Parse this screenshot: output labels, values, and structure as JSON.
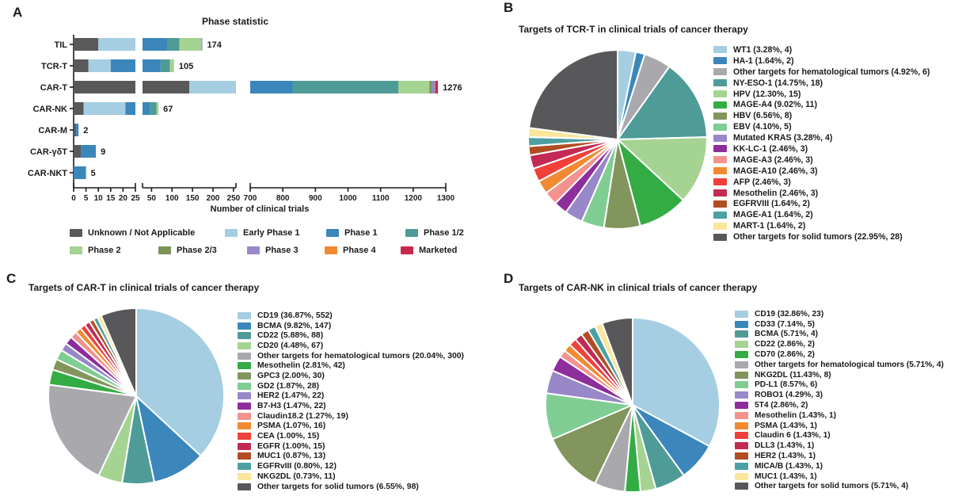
{
  "figure": {
    "panel_a": {
      "letter": "A",
      "title": "Phase statistic",
      "xlabel": "Number of clinical trials"
    },
    "panel_b": {
      "letter": "B",
      "title": "Targets of TCR-T in clinical trials of cancer therapy"
    },
    "panel_c": {
      "letter": "C",
      "title": "Targets of CAR-T in clinical trials of cancer therapy"
    },
    "panel_d": {
      "letter": "D",
      "title": "Targets of CAR-NK in clinical trials of cancer therapy"
    }
  },
  "chart_data": [
    {
      "type": "bar",
      "panel": "A",
      "title": "Phase statistic",
      "xlabel": "Number of clinical trials",
      "orientation": "horizontal_stacked",
      "axis_break_ranges": [
        [
          0,
          25
        ],
        [
          28,
          256
        ],
        [
          700,
          1300
        ]
      ],
      "x_ticks": [
        [
          0,
          5,
          10,
          15,
          20,
          25
        ],
        [
          50,
          100,
          150,
          200,
          250
        ],
        [
          700,
          800,
          900,
          1000,
          1100,
          1200,
          1300
        ]
      ],
      "categories": [
        "TIL",
        "TCR-T",
        "CAR-T",
        "CAR-NK",
        "CAR-M",
        "CAR-γδT",
        "CAR-NKT"
      ],
      "totals": [
        174,
        105,
        1276,
        67,
        2,
        9,
        5
      ],
      "series": [
        {
          "name": "Unknown / Not Applicable",
          "color": "#595959",
          "values": [
            10,
            6,
            142,
            4,
            1,
            3,
            0
          ]
        },
        {
          "name": "Early Phase 1",
          "color": "#A5CEE3",
          "values": [
            18,
            9,
            308,
            17,
            0,
            0,
            0
          ]
        },
        {
          "name": "Phase 1",
          "color": "#3B87BC",
          "values": [
            61,
            57,
            380,
            26,
            1,
            6,
            5
          ]
        },
        {
          "name": "Phase 1/2",
          "color": "#4E9B98",
          "values": [
            29,
            23,
            325,
            15,
            0,
            0,
            0
          ]
        },
        {
          "name": "Phase 2",
          "color": "#A5D392",
          "values": [
            54,
            10,
            95,
            5,
            0,
            0,
            0
          ]
        },
        {
          "name": "Phase 2/3",
          "color": "#7C9357",
          "values": [
            0,
            0,
            8,
            0,
            0,
            0,
            0
          ]
        },
        {
          "name": "Phase 3",
          "color": "#9887C9",
          "values": [
            2,
            0,
            10,
            0,
            0,
            0,
            0
          ]
        },
        {
          "name": "Phase 4",
          "color": "#F18A31",
          "values": [
            0,
            0,
            0,
            0,
            0,
            0,
            0
          ]
        },
        {
          "name": "Marketed",
          "color": "#C8294B",
          "values": [
            0,
            0,
            8,
            0,
            0,
            0,
            0
          ]
        }
      ]
    },
    {
      "type": "pie",
      "panel": "B",
      "title": "Targets of TCR-T in clinical trials of cancer therapy",
      "slices": [
        {
          "name": "WT1",
          "pct": "3.28",
          "count": 4,
          "color": "#A5CEE3"
        },
        {
          "name": "HA-1",
          "pct": "1.64",
          "count": 2,
          "color": "#3B87BC"
        },
        {
          "name": "Other targets for hematological tumors",
          "pct": "4.92",
          "count": 6,
          "color": "#A9A9AD"
        },
        {
          "name": "NY-ESO-1",
          "pct": "14.75",
          "count": 18,
          "color": "#4E9B98"
        },
        {
          "name": "HPV",
          "pct": "12.30",
          "count": 15,
          "color": "#A5D392"
        },
        {
          "name": "MAGE-A4",
          "pct": "9.02",
          "count": 11,
          "color": "#33AC43"
        },
        {
          "name": "HBV",
          "pct": "6.56",
          "count": 8,
          "color": "#81955C"
        },
        {
          "name": "EBV",
          "pct": "4.10",
          "count": 5,
          "color": "#7FCD92"
        },
        {
          "name": "Mutated KRAS",
          "pct": "3.28",
          "count": 4,
          "color": "#9887C9"
        },
        {
          "name": "KK-LC-1",
          "pct": "2.46",
          "count": 3,
          "color": "#8E2D9C"
        },
        {
          "name": "MAGE-A3",
          "pct": "2.46",
          "count": 3,
          "color": "#F3928E"
        },
        {
          "name": "MAGE-A10",
          "pct": "2.46",
          "count": 3,
          "color": "#F18A31"
        },
        {
          "name": "AFP",
          "pct": "2.46",
          "count": 3,
          "color": "#F0403A"
        },
        {
          "name": "Mesothelin",
          "pct": "2.46",
          "count": 3,
          "color": "#C32A53"
        },
        {
          "name": "EGFRVIII",
          "pct": "1.64",
          "count": 2,
          "color": "#B04D22"
        },
        {
          "name": "MAGE-A1",
          "pct": "1.64",
          "count": 2,
          "color": "#4CA0A2"
        },
        {
          "name": "MART-1",
          "pct": "1.64",
          "count": 2,
          "color": "#FAE69C"
        },
        {
          "name": "Other targets for solid tumors",
          "pct": "22.95",
          "count": 28,
          "color": "#58585A"
        }
      ]
    },
    {
      "type": "pie",
      "panel": "C",
      "title": "Targets of CAR-T in clinical trials of cancer therapy",
      "slices": [
        {
          "name": "CD19",
          "pct": "36.87",
          "count": 552,
          "color": "#A5CEE3"
        },
        {
          "name": "BCMA",
          "pct": "9.82",
          "count": 147,
          "color": "#3B87BC"
        },
        {
          "name": "CD22",
          "pct": "5.88",
          "count": 88,
          "color": "#4E9B98"
        },
        {
          "name": "CD20",
          "pct": "4.48",
          "count": 67,
          "color": "#A5D392"
        },
        {
          "name": "Other targets for hematological tumors",
          "pct": "20.04",
          "count": 300,
          "color": "#A9A9AD"
        },
        {
          "name": "Mesothelin",
          "pct": "2.81",
          "count": 42,
          "color": "#33AC43"
        },
        {
          "name": "GPC3",
          "pct": "2.00",
          "count": 30,
          "color": "#81955C"
        },
        {
          "name": "GD2",
          "pct": "1.87",
          "count": 28,
          "color": "#7FCD92"
        },
        {
          "name": "HER2",
          "pct": "1.47",
          "count": 22,
          "color": "#9887C9"
        },
        {
          "name": "B7-H3",
          "pct": "1.47",
          "count": 22,
          "color": "#8E2D9C"
        },
        {
          "name": "Claudin18.2",
          "pct": "1.27",
          "count": 19,
          "color": "#F3928E"
        },
        {
          "name": "PSMA",
          "pct": "1.07",
          "count": 16,
          "color": "#F18A31"
        },
        {
          "name": "CEA",
          "pct": "1.00",
          "count": 15,
          "color": "#F0403A"
        },
        {
          "name": "EGFR",
          "pct": "1.00",
          "count": 15,
          "color": "#C32A53"
        },
        {
          "name": "MUC1",
          "pct": "0.87",
          "count": 13,
          "color": "#B04D22"
        },
        {
          "name": "EGFRvIII",
          "pct": "0.80",
          "count": 12,
          "color": "#4CA0A2"
        },
        {
          "name": "NKG2DL",
          "pct": "0.73",
          "count": 11,
          "color": "#FAE69C"
        },
        {
          "name": "Other targets for solid tumors",
          "pct": "6.55",
          "count": 98,
          "color": "#58585A"
        }
      ]
    },
    {
      "type": "pie",
      "panel": "D",
      "title": "Targets of CAR-NK in clinical trials of cancer therapy",
      "slices": [
        {
          "name": "CD19",
          "pct": "32.86",
          "count": 23,
          "color": "#A5CEE3"
        },
        {
          "name": "CD33",
          "pct": "7.14",
          "count": 5,
          "color": "#3B87BC"
        },
        {
          "name": "BCMA",
          "pct": "5.71",
          "count": 4,
          "color": "#4E9B98"
        },
        {
          "name": "CD22",
          "pct": "2.86",
          "count": 2,
          "color": "#A5D392"
        },
        {
          "name": "CD70",
          "pct": "2.86",
          "count": 2,
          "color": "#33AC43"
        },
        {
          "name": "Other targets for hematological tumors",
          "pct": "5.71",
          "count": 4,
          "color": "#A9A9AD"
        },
        {
          "name": "NKG2DL",
          "pct": "11.43",
          "count": 8,
          "color": "#81955C"
        },
        {
          "name": "PD-L1",
          "pct": "8.57",
          "count": 6,
          "color": "#7FCD92"
        },
        {
          "name": "ROBO1",
          "pct": "4.29",
          "count": 3,
          "color": "#9887C9"
        },
        {
          "name": "5T4",
          "pct": "2.86",
          "count": 2,
          "color": "#8E2D9C"
        },
        {
          "name": "Mesothelin",
          "pct": "1.43",
          "count": 1,
          "color": "#F3928E"
        },
        {
          "name": "PSMA",
          "pct": "1.43",
          "count": 1,
          "color": "#F18A31"
        },
        {
          "name": "Claudin 6",
          "pct": "1.43",
          "count": 1,
          "color": "#F0403A"
        },
        {
          "name": "DLL3",
          "pct": "1.43",
          "count": 1,
          "color": "#C32A53"
        },
        {
          "name": "HER2",
          "pct": "1.43",
          "count": 1,
          "color": "#B04D22"
        },
        {
          "name": "MICA/B",
          "pct": "1.43",
          "count": 1,
          "color": "#4CA0A2"
        },
        {
          "name": "MUC1",
          "pct": "1.43",
          "count": 1,
          "color": "#FAE69C"
        },
        {
          "name": "Other targets for solid tumors",
          "pct": "5.71",
          "count": 4,
          "color": "#58585A"
        }
      ]
    }
  ]
}
